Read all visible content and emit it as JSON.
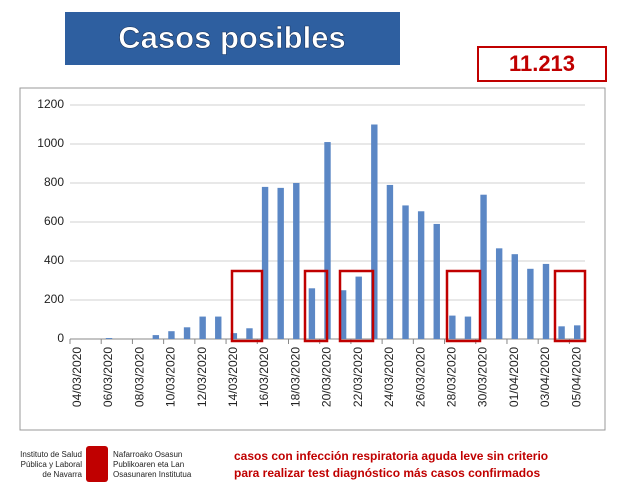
{
  "header": {
    "title": "Casos posibles",
    "total": "11.213"
  },
  "footer": {
    "note": [
      "casos con infección respiratoria aguda leve sin criterio",
      "para realizar test diagnóstico más casos confirmados"
    ],
    "logo_es": [
      "Instituto de Salud",
      "Pública y Laboral",
      "de Navarra"
    ],
    "logo_eu": [
      "Nafarroako Osasun",
      "Publikoaren eta Lan",
      "Osasunaren Institutua"
    ]
  },
  "chart_data": {
    "type": "bar",
    "categories": [
      "04/03/2020",
      null,
      "06/03/2020",
      null,
      "08/03/2020",
      null,
      "10/03/2020",
      null,
      "12/03/2020",
      null,
      "14/03/2020",
      null,
      "16/03/2020",
      null,
      "18/03/2020",
      null,
      "20/03/2020",
      null,
      "22/03/2020",
      null,
      "24/03/2020",
      null,
      "26/03/2020",
      null,
      "28/03/2020",
      null,
      "30/03/2020",
      null,
      "01/04/2020",
      null,
      "03/04/2020",
      null,
      "05/04/2020"
    ],
    "values": [
      0,
      0,
      5,
      0,
      0,
      20,
      40,
      60,
      115,
      115,
      30,
      55,
      780,
      775,
      800,
      260,
      1010,
      250,
      320,
      1100,
      790,
      685,
      655,
      590,
      120,
      115,
      740,
      465,
      435,
      360,
      385,
      65,
      70
    ],
    "color": "#5b87c5",
    "ylim": [
      0,
      1200
    ],
    "yticks": [
      0,
      200,
      400,
      600,
      800,
      1000,
      1200
    ],
    "grid": true
  }
}
